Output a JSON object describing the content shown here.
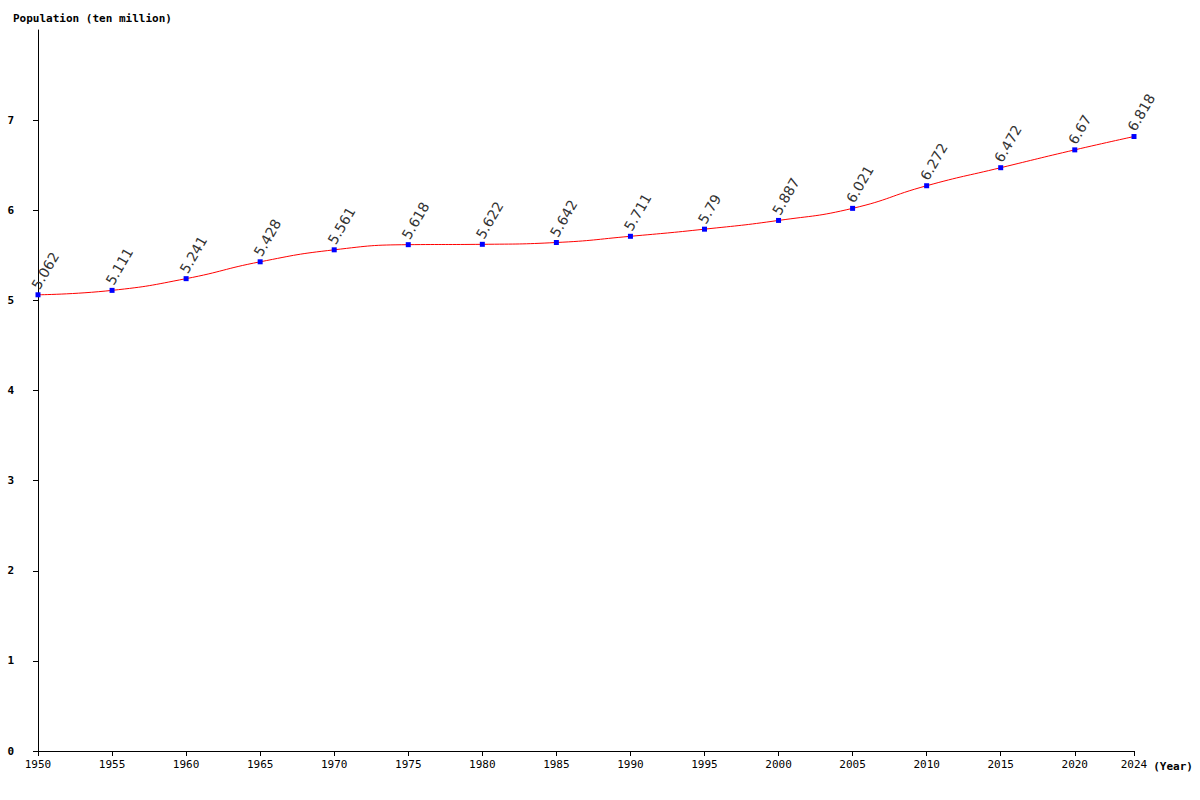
{
  "chart_data": {
    "type": "line",
    "title": "Population (ten million)",
    "x_label": "(Year)",
    "x": [
      1950,
      1955,
      1960,
      1965,
      1970,
      1975,
      1980,
      1985,
      1990,
      1995,
      2000,
      2005,
      2010,
      2015,
      2020,
      2024
    ],
    "series": [
      {
        "name": "Population",
        "color": "#ff0000",
        "marker": "square",
        "values": [
          5.062,
          5.111,
          5.241,
          5.428,
          5.561,
          5.618,
          5.622,
          5.642,
          5.711,
          5.79,
          5.887,
          6.021,
          6.272,
          6.472,
          6.67,
          6.818
        ]
      }
    ],
    "xlim": [
      1950,
      2024
    ],
    "xticks": [
      1950,
      1955,
      1960,
      1965,
      1970,
      1975,
      1980,
      1985,
      1990,
      1995,
      2000,
      2005,
      2010,
      2015,
      2020,
      2024
    ],
    "ylim": [
      0,
      8
    ],
    "yticks": [
      0,
      1,
      2,
      3,
      4,
      5,
      6,
      7
    ],
    "grid": false,
    "data_labels": true
  }
}
